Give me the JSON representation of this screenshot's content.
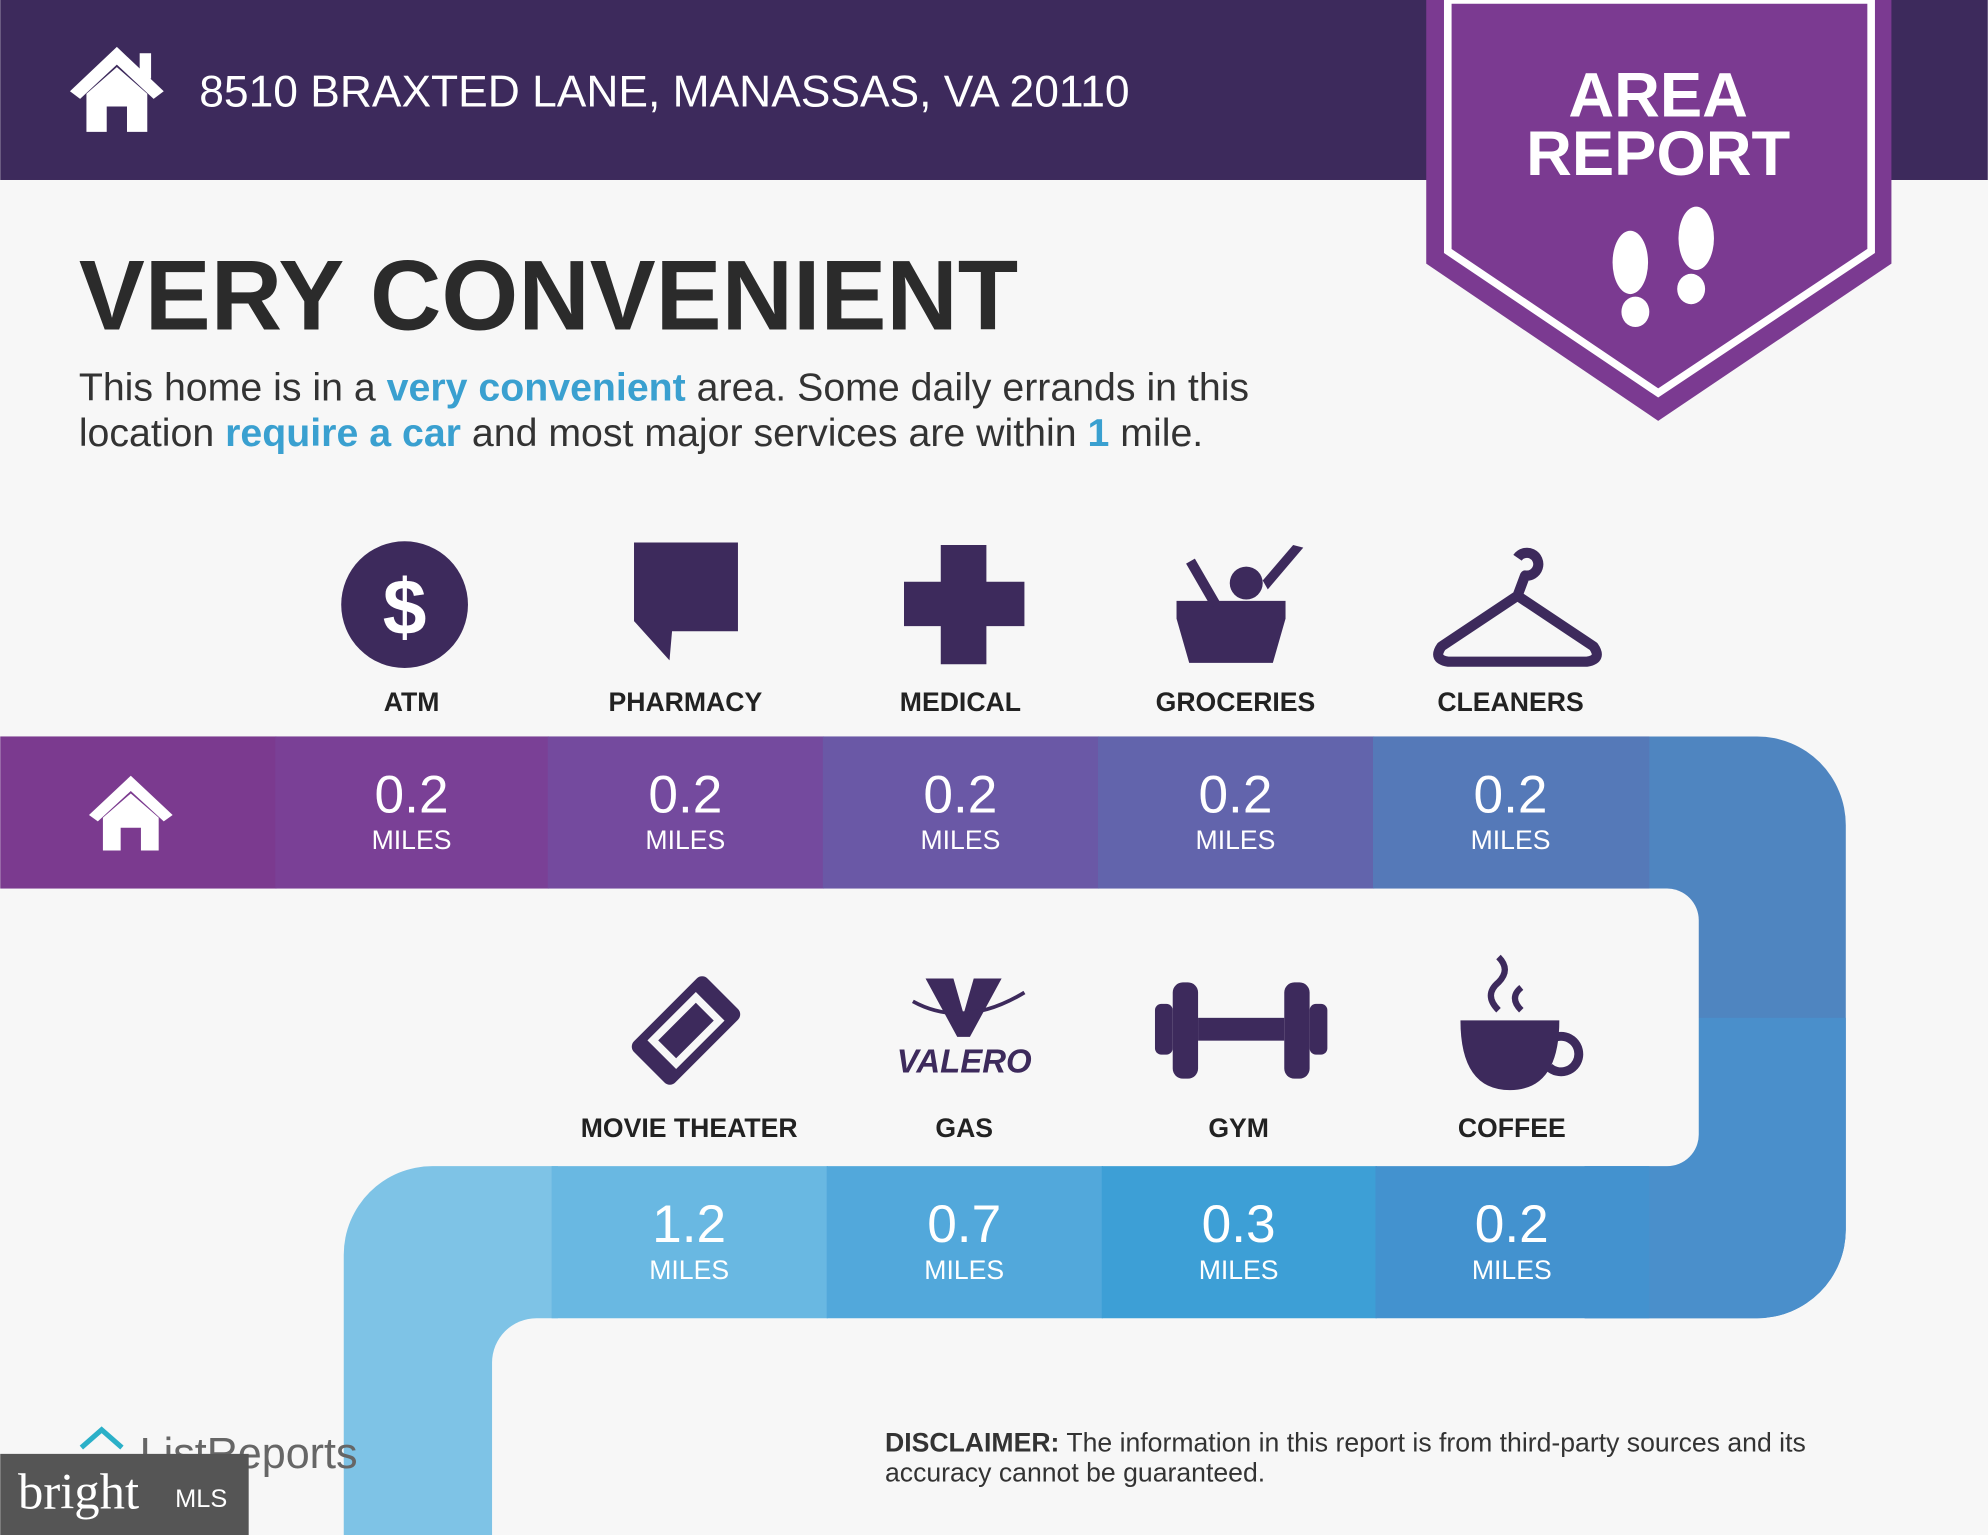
{
  "header": {
    "address": "8510 BRAXTED LANE, MANASSAS, VA 20110"
  },
  "badge": {
    "lines": [
      "AREA",
      "REPORT"
    ]
  },
  "heading": "VERY CONVENIENT",
  "description": {
    "lines": [
      [
        {
          "text": "This home is in a ",
          "highlight": false
        },
        {
          "text": "very convenient",
          "highlight": true
        },
        {
          "text": " area. Some daily errands in this",
          "highlight": false
        }
      ],
      [
        {
          "text": "location ",
          "highlight": false
        },
        {
          "text": "require a car",
          "highlight": true
        },
        {
          "text": " and most major services are within ",
          "highlight": false
        },
        {
          "text": "1",
          "highlight": true
        },
        {
          "text": " mile.",
          "highlight": false
        }
      ]
    ]
  },
  "amenities": [
    {
      "label": "ATM",
      "distance": 0.2,
      "unit": "MILES"
    },
    {
      "label": "PHARMACY",
      "distance": 0.2,
      "unit": "MILES"
    },
    {
      "label": "MEDICAL",
      "distance": 0.2,
      "unit": "MILES"
    },
    {
      "label": "GROCERIES",
      "distance": 0.2,
      "unit": "MILES"
    },
    {
      "label": "CLEANERS",
      "distance": 0.2,
      "unit": "MILES"
    },
    {
      "label": "MOVIE THEATER",
      "distance": 1.2,
      "unit": "MILES"
    },
    {
      "label": "GAS",
      "distance": 0.7,
      "unit": "MILES",
      "logo_text": "VALERO"
    },
    {
      "label": "GYM",
      "distance": 0.3,
      "unit": "MILES"
    },
    {
      "label": "COFFEE",
      "distance": 0.2,
      "unit": "MILES"
    }
  ],
  "footer": {
    "brand": "ListReports",
    "mls_brand": "bright",
    "mls_suffix": "MLS",
    "disclaimer_label": "DISCLAIMER:",
    "disclaimer_lines": [
      " The information in this report is from third-party sources and its",
      "accuracy cannot be guaranteed."
    ]
  }
}
